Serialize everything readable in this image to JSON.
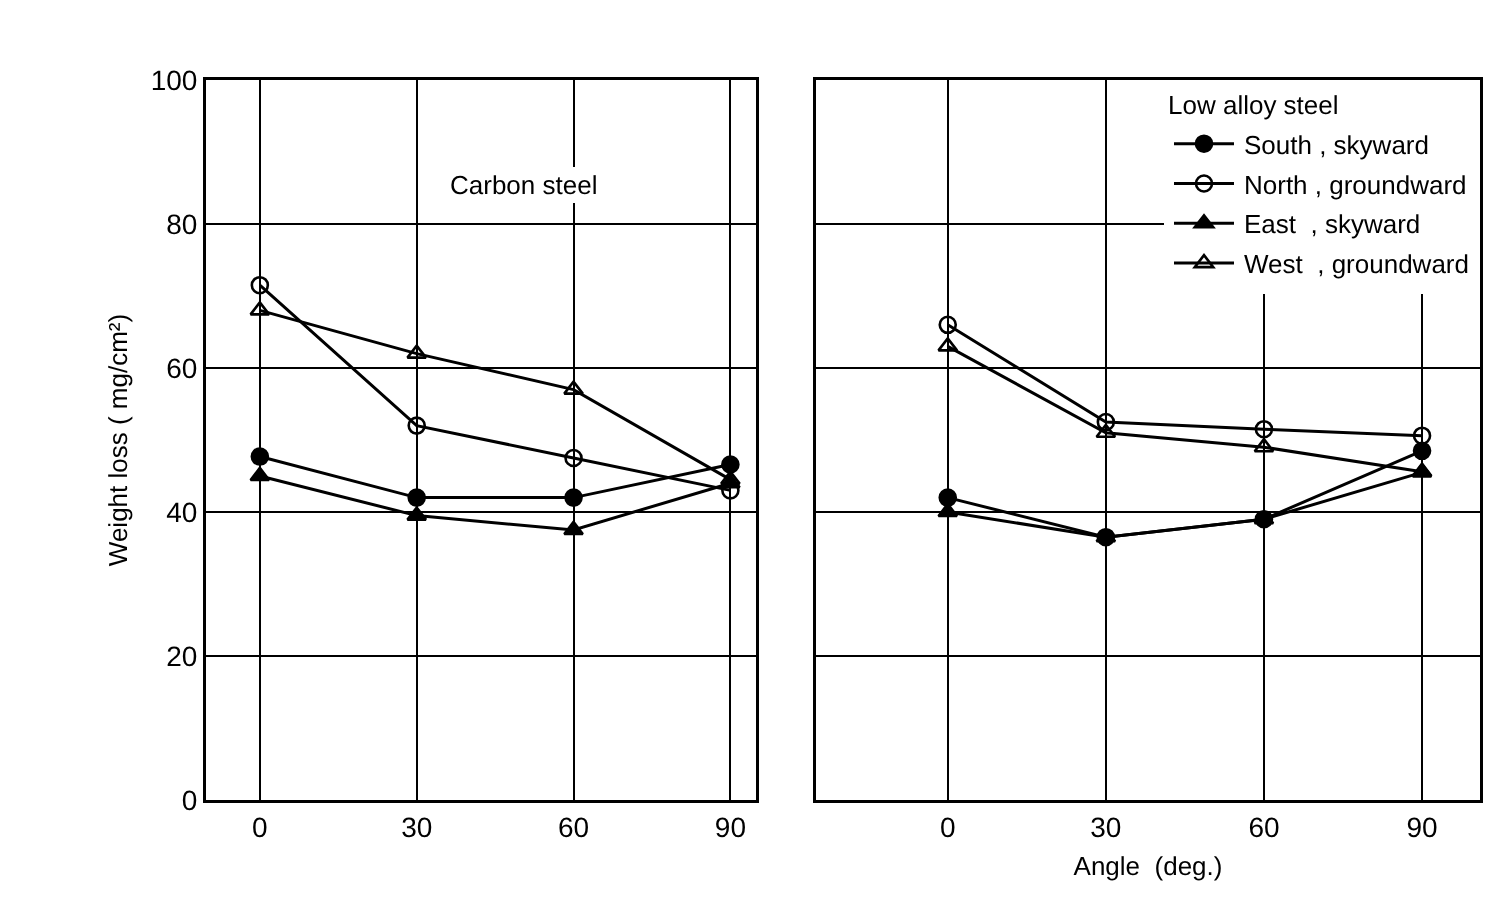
{
  "chart_data": [
    {
      "type": "line",
      "ylabel": "Weight loss ( mg/cm²)",
      "annotations": [
        "Carbon steel"
      ],
      "x": [
        0,
        30,
        60,
        90
      ],
      "xlim": [
        -10.3,
        94.9
      ],
      "xticks": [
        0,
        30,
        60,
        90
      ],
      "ylim": [
        0,
        100
      ],
      "yticks": [
        0,
        20,
        40,
        60,
        80,
        100
      ],
      "grid": true,
      "legend": false,
      "line_style": "solid",
      "series": [
        {
          "color": "#000000",
          "marker": "circle",
          "values": [
            47.7,
            42,
            42,
            46.6
          ]
        },
        {
          "color": "#000000",
          "marker": "circle-open",
          "values": [
            71.5,
            52,
            47.5,
            43
          ]
        },
        {
          "color": "#000000",
          "marker": "triangle",
          "values": [
            45,
            39.5,
            37.5,
            44
          ]
        },
        {
          "color": "#000000",
          "marker": "triangle-open",
          "values": [
            68,
            62,
            57,
            44.5
          ]
        }
      ]
    },
    {
      "type": "line",
      "xlabel": "Angle  (deg.)",
      "legend_title": "Low alloy steel",
      "x": [
        0,
        30,
        60,
        90
      ],
      "xlim": [
        -25,
        101
      ],
      "xticks": [
        0,
        30,
        60,
        90
      ],
      "ylim": [
        0,
        100
      ],
      "yticks": [
        0,
        20,
        40,
        60,
        80,
        100
      ],
      "tick_labels": "x",
      "grid": true,
      "legend": "top right",
      "line_style": "solid",
      "series": [
        {
          "name": "South , skyward",
          "color": "#000000",
          "marker": "circle",
          "values": [
            42,
            36.5,
            39,
            48.5
          ]
        },
        {
          "name": "North , groundward",
          "color": "#000000",
          "marker": "circle-open",
          "values": [
            66,
            52.5,
            51.5,
            50.6
          ]
        },
        {
          "name": "East  , skyward",
          "color": "#000000",
          "marker": "triangle",
          "values": [
            40,
            36.5,
            39,
            45.5
          ]
        },
        {
          "name": "West  , groundward",
          "color": "#000000",
          "marker": "triangle-open",
          "values": [
            63,
            51,
            49,
            45.6
          ]
        }
      ]
    }
  ]
}
